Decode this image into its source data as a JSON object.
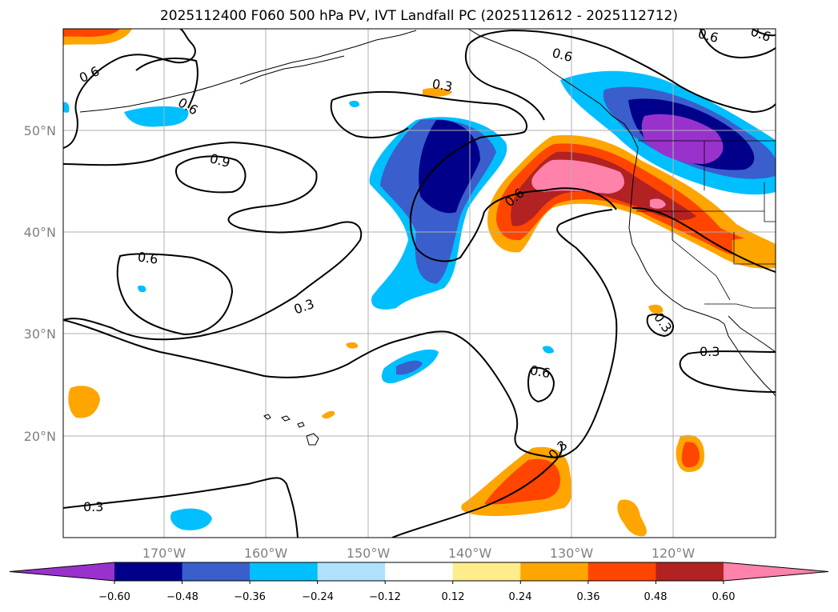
{
  "title": "2025112400 F060 500 hPa PV, IVT Landfall PC (2025112612 - 2025112712)",
  "lat_labels": [
    "50°N",
    "40°N",
    "30°N",
    "20°N"
  ],
  "lon_labels": [
    "170°W",
    "160°W",
    "150°W",
    "140°W",
    "130°W",
    "120°W"
  ],
  "colorbar": {
    "ticks": [
      "−0.60",
      "−0.48",
      "−0.36",
      "−0.24",
      "−0.12",
      "0.12",
      "0.24",
      "0.36",
      "0.48",
      "0.60"
    ],
    "colors": [
      "#9932cc",
      "#00008b",
      "#3a5fcd",
      "#00bfff",
      "#b0e2ff",
      "#ffffff",
      "#ffec8b",
      "#ffa500",
      "#ff4500",
      "#b22222",
      "#ff82ab"
    ]
  },
  "contour_labels": [
    "0.6",
    "0.6",
    "0.6",
    "0.6",
    "0.3",
    "0.6",
    "0.9",
    "0.6",
    "0.6",
    "0.3",
    "0.3",
    "0.3",
    "0.6",
    "0.3",
    "0.3"
  ],
  "colors": {
    "neg_purple": "#9932cc",
    "neg_navy": "#00008b",
    "neg_blue": "#3a5fcd",
    "neg_cyan": "#00bfff",
    "pos_orange": "#ffa500",
    "pos_redorange": "#ff4500",
    "pos_firebrick": "#b22222",
    "pos_pink": "#ff82ab"
  }
}
